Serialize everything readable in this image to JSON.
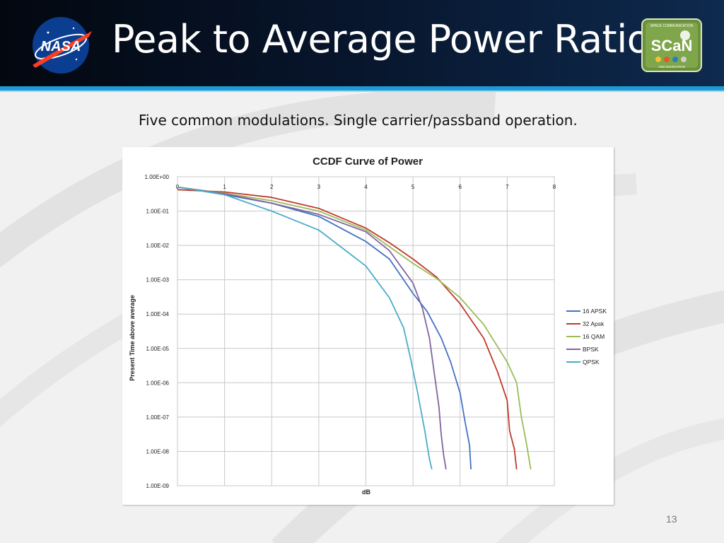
{
  "slide": {
    "title": "Peak to Average Power Ratio",
    "subtitle": "Five common modulations.  Single carrier/passband operation.",
    "page_number": "13",
    "logos": {
      "left": {
        "icon": "nasa-logo",
        "text": "NASA"
      },
      "right": {
        "icon": "scan-logo",
        "text": "SCaN",
        "top_text": "SPACE COMMUNICATION",
        "bottom_text": "AND NAVIGATION"
      }
    },
    "colors": {
      "header": "#07142a",
      "accent_rule": "#1d9bd7",
      "title_text": "#ffffff"
    }
  },
  "chart_data": {
    "type": "line",
    "title": "CCDF Curve of Power",
    "xlabel": "dB",
    "ylabel": "Present Time above average",
    "x_ticks": [
      "0",
      "1",
      "2",
      "3",
      "4",
      "5",
      "6",
      "7",
      "8"
    ],
    "xlim": [
      0,
      8
    ],
    "y_scale": "log",
    "ylim": [
      1e-09,
      1
    ],
    "y_ticks": [
      "1.00E+00",
      "1.00E-01",
      "1.00E-02",
      "1.00E-03",
      "1.00E-04",
      "1.00E-05",
      "1.00E-06",
      "1.00E-07",
      "1.00E-08",
      "1.00E-09"
    ],
    "grid": true,
    "legend_position": "right",
    "series": [
      {
        "name": "16 APSK",
        "color": "#4472c4",
        "points": [
          [
            0,
            0.5
          ],
          [
            1,
            0.3
          ],
          [
            2,
            0.17
          ],
          [
            3,
            0.07
          ],
          [
            4,
            0.013
          ],
          [
            4.5,
            0.004
          ],
          [
            5,
            0.0004
          ],
          [
            5.3,
            0.00012
          ],
          [
            5.6,
            2e-05
          ],
          [
            5.8,
            4e-06
          ],
          [
            6.0,
            5e-07
          ],
          [
            6.1,
            8e-08
          ],
          [
            6.2,
            1.5e-08
          ],
          [
            6.23,
            3e-09
          ]
        ]
      },
      {
        "name": "32 Apsk",
        "color": "#c0392b",
        "points": [
          [
            0,
            0.42
          ],
          [
            1,
            0.36
          ],
          [
            2,
            0.25
          ],
          [
            3,
            0.12
          ],
          [
            4,
            0.032
          ],
          [
            4.5,
            0.012
          ],
          [
            5,
            0.004
          ],
          [
            5.5,
            0.0012
          ],
          [
            6,
            0.0002
          ],
          [
            6.5,
            2e-05
          ],
          [
            6.8,
            2e-06
          ],
          [
            7.0,
            3e-07
          ],
          [
            7.05,
            4e-08
          ],
          [
            7.15,
            1.2e-08
          ],
          [
            7.2,
            3e-09
          ]
        ]
      },
      {
        "name": "16 QAM",
        "color": "#9bbb59",
        "points": [
          [
            0,
            0.5
          ],
          [
            1,
            0.33
          ],
          [
            2,
            0.2
          ],
          [
            3,
            0.1
          ],
          [
            4,
            0.028
          ],
          [
            5,
            0.003
          ],
          [
            5.5,
            0.0011
          ],
          [
            6,
            0.0003
          ],
          [
            6.5,
            5e-05
          ],
          [
            7,
            4e-06
          ],
          [
            7.2,
            1e-06
          ],
          [
            7.3,
            1e-07
          ],
          [
            7.4,
            2e-08
          ],
          [
            7.5,
            3e-09
          ]
        ]
      },
      {
        "name": "BPSK",
        "color": "#8064a2",
        "points": [
          [
            0,
            0.5
          ],
          [
            1,
            0.32
          ],
          [
            2,
            0.17
          ],
          [
            3,
            0.08
          ],
          [
            4,
            0.025
          ],
          [
            4.5,
            0.007
          ],
          [
            5,
            0.0008
          ],
          [
            5.2,
            0.00015
          ],
          [
            5.35,
            2e-05
          ],
          [
            5.45,
            2e-06
          ],
          [
            5.55,
            2e-07
          ],
          [
            5.6,
            3e-08
          ],
          [
            5.65,
            8e-09
          ],
          [
            5.7,
            3e-09
          ]
        ]
      },
      {
        "name": "QPSK",
        "color": "#4bacc6",
        "points": [
          [
            0,
            0.5
          ],
          [
            1,
            0.3
          ],
          [
            2,
            0.1
          ],
          [
            3,
            0.028
          ],
          [
            4,
            0.0025
          ],
          [
            4.5,
            0.0003
          ],
          [
            4.8,
            4e-05
          ],
          [
            4.95,
            5e-06
          ],
          [
            5.1,
            5e-07
          ],
          [
            5.25,
            4e-08
          ],
          [
            5.35,
            6e-09
          ],
          [
            5.4,
            3e-09
          ]
        ]
      }
    ]
  }
}
